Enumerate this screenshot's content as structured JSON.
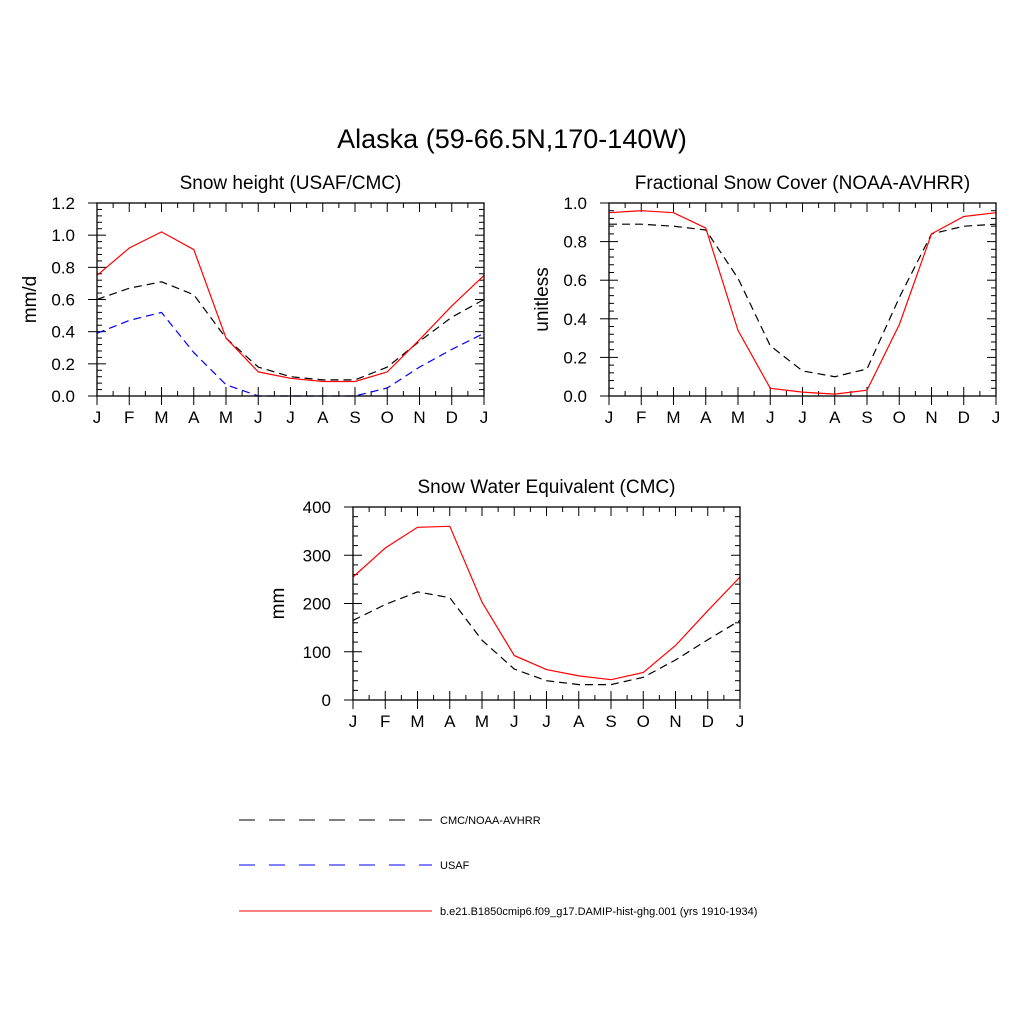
{
  "title": "Alaska (59-66.5N,170-140W)",
  "colors": {
    "obs": "#000000",
    "usaf": "#0000ff",
    "model": "#ff0000"
  },
  "months": [
    "J",
    "F",
    "M",
    "A",
    "M",
    "J",
    "J",
    "A",
    "S",
    "O",
    "N",
    "D",
    "J"
  ],
  "chart_data": [
    {
      "type": "line",
      "title": "Snow height (USAF/CMC)",
      "xlabel": "",
      "ylabel": "mm/d",
      "ylim": [
        0,
        1.2
      ],
      "yticks": [
        "0.0",
        "0.2",
        "0.4",
        "0.6",
        "0.8",
        "1.0",
        "1.2"
      ],
      "categories": [
        "J",
        "F",
        "M",
        "A",
        "M",
        "J",
        "J",
        "A",
        "S",
        "O",
        "N",
        "D",
        "J"
      ],
      "series": [
        {
          "name": "CMC/NOAA-AVHRR",
          "style": "dashed",
          "color": "#000000",
          "values": [
            0.6,
            0.67,
            0.71,
            0.63,
            0.36,
            0.18,
            0.12,
            0.1,
            0.1,
            0.18,
            0.34,
            0.49,
            0.6
          ]
        },
        {
          "name": "USAF",
          "style": "dashed",
          "color": "#0000ff",
          "values": [
            0.39,
            0.47,
            0.52,
            0.27,
            0.07,
            0.0,
            0.0,
            0.0,
            0.0,
            0.05,
            0.18,
            0.29,
            0.39
          ]
        },
        {
          "name": "b.e21.B1850cmip6.f09_g17.DAMIP-hist-ghg.001 (yrs 1910-1934)",
          "style": "solid",
          "color": "#ff0000",
          "values": [
            0.75,
            0.92,
            1.02,
            0.91,
            0.36,
            0.15,
            0.11,
            0.09,
            0.09,
            0.15,
            0.35,
            0.56,
            0.75
          ]
        }
      ]
    },
    {
      "type": "line",
      "title": "Fractional Snow Cover (NOAA-AVHRR)",
      "xlabel": "",
      "ylabel": "unitless",
      "ylim": [
        0,
        1.0
      ],
      "yticks": [
        "0.0",
        "0.2",
        "0.4",
        "0.6",
        "0.8",
        "1.0"
      ],
      "categories": [
        "J",
        "F",
        "M",
        "A",
        "M",
        "J",
        "J",
        "A",
        "S",
        "O",
        "N",
        "D",
        "J"
      ],
      "series": [
        {
          "name": "CMC/NOAA-AVHRR",
          "style": "dashed",
          "color": "#000000",
          "values": [
            0.89,
            0.89,
            0.88,
            0.86,
            0.61,
            0.26,
            0.13,
            0.1,
            0.14,
            0.51,
            0.84,
            0.88,
            0.89
          ]
        },
        {
          "name": "b.e21.B1850cmip6.f09_g17.DAMIP-hist-ghg.001 (yrs 1910-1934)",
          "style": "solid",
          "color": "#ff0000",
          "values": [
            0.95,
            0.96,
            0.95,
            0.87,
            0.34,
            0.04,
            0.02,
            0.01,
            0.03,
            0.37,
            0.84,
            0.93,
            0.95
          ]
        }
      ]
    },
    {
      "type": "line",
      "title": "Snow Water Equivalent (CMC)",
      "xlabel": "",
      "ylabel": "mm",
      "ylim": [
        0,
        400
      ],
      "yticks": [
        "0",
        "100",
        "200",
        "300",
        "400"
      ],
      "categories": [
        "J",
        "F",
        "M",
        "A",
        "M",
        "J",
        "J",
        "A",
        "S",
        "O",
        "N",
        "D",
        "J"
      ],
      "series": [
        {
          "name": "CMC/NOAA-AVHRR",
          "style": "dashed",
          "color": "#000000",
          "values": [
            165,
            198,
            224,
            212,
            124,
            64,
            40,
            32,
            32,
            47,
            83,
            125,
            165
          ]
        },
        {
          "name": "b.e21.B1850cmip6.f09_g17.DAMIP-hist-ghg.001 (yrs 1910-1934)",
          "style": "solid",
          "color": "#ff0000",
          "values": [
            255,
            315,
            358,
            360,
            203,
            92,
            63,
            50,
            42,
            57,
            113,
            185,
            255
          ]
        }
      ]
    }
  ],
  "legend": [
    {
      "label": "CMC/NOAA-AVHRR",
      "color": "#000000",
      "style": "dashed"
    },
    {
      "label": "USAF",
      "color": "#0000ff",
      "style": "dashed"
    },
    {
      "label": "b.e21.B1850cmip6.f09_g17.DAMIP-hist-ghg.001 (yrs 1910-1934)",
      "color": "#ff0000",
      "style": "solid"
    }
  ]
}
